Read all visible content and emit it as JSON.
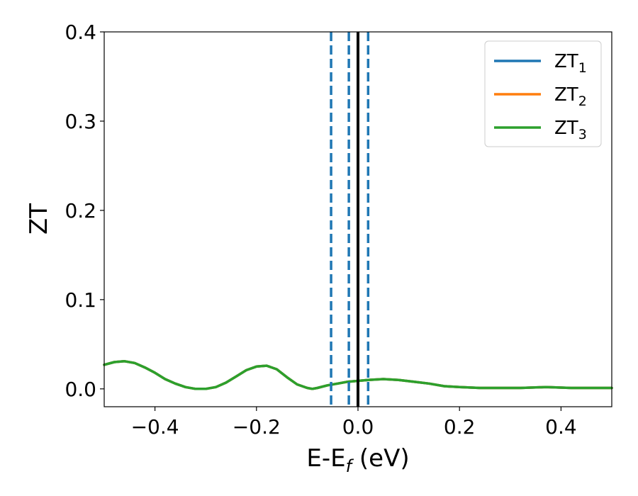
{
  "chart_data": {
    "type": "line",
    "title": "",
    "xlabel_main": "E-E",
    "xlabel_sub": "f",
    "xlabel_unit": " (eV)",
    "ylabel": "ZT",
    "xlim": [
      -0.5,
      0.5
    ],
    "ylim": [
      -0.02,
      0.4
    ],
    "xticks": [
      -0.4,
      -0.2,
      0.0,
      0.2,
      0.4
    ],
    "xtick_labels": [
      "−0.4",
      "−0.2",
      "0.0",
      "0.2",
      "0.4"
    ],
    "yticks": [
      0.0,
      0.1,
      0.2,
      0.3,
      0.4
    ],
    "ytick_labels": [
      "0.0",
      "0.1",
      "0.2",
      "0.3",
      "0.4"
    ],
    "grid": false,
    "legend_position": "top-right",
    "series": [
      {
        "name_main": "ZT",
        "name_sub": "1",
        "color": "#1f77b4",
        "x": [
          -0.5,
          -0.48,
          -0.46,
          -0.44,
          -0.42,
          -0.4,
          -0.38,
          -0.36,
          -0.34,
          -0.32,
          -0.3,
          -0.28,
          -0.26,
          -0.24,
          -0.22,
          -0.2,
          -0.18,
          -0.16,
          -0.14,
          -0.12,
          -0.1,
          -0.09,
          -0.08,
          -0.06,
          -0.04,
          -0.02,
          0.0,
          0.02,
          0.05,
          0.08,
          0.11,
          0.14,
          0.17,
          0.2,
          0.24,
          0.28,
          0.32,
          0.37,
          0.42,
          0.46,
          0.5
        ],
        "y": [
          0.027,
          0.03,
          0.031,
          0.029,
          0.024,
          0.018,
          0.011,
          0.006,
          0.002,
          0.0,
          0.0,
          0.002,
          0.007,
          0.014,
          0.021,
          0.025,
          0.026,
          0.022,
          0.013,
          0.005,
          0.001,
          0.0,
          0.001,
          0.004,
          0.006,
          0.008,
          0.009,
          0.01,
          0.011,
          0.01,
          0.008,
          0.006,
          0.003,
          0.002,
          0.001,
          0.001,
          0.001,
          0.002,
          0.001,
          0.001,
          0.001
        ]
      },
      {
        "name_main": "ZT",
        "name_sub": "2",
        "color": "#ff7f0e",
        "x": [
          -0.5,
          -0.48,
          -0.46,
          -0.44,
          -0.42,
          -0.4,
          -0.38,
          -0.36,
          -0.34,
          -0.32,
          -0.3,
          -0.28,
          -0.26,
          -0.24,
          -0.22,
          -0.2,
          -0.18,
          -0.16,
          -0.14,
          -0.12,
          -0.1,
          -0.09,
          -0.08,
          -0.06,
          -0.04,
          -0.02,
          0.0,
          0.02,
          0.05,
          0.08,
          0.11,
          0.14,
          0.17,
          0.2,
          0.24,
          0.28,
          0.32,
          0.37,
          0.42,
          0.46,
          0.5
        ],
        "y": [
          0.027,
          0.03,
          0.031,
          0.029,
          0.024,
          0.018,
          0.011,
          0.006,
          0.002,
          0.0,
          0.0,
          0.002,
          0.007,
          0.014,
          0.021,
          0.025,
          0.026,
          0.022,
          0.013,
          0.005,
          0.001,
          0.0,
          0.001,
          0.004,
          0.006,
          0.008,
          0.009,
          0.01,
          0.011,
          0.01,
          0.008,
          0.006,
          0.003,
          0.002,
          0.001,
          0.001,
          0.001,
          0.002,
          0.001,
          0.001,
          0.001
        ]
      },
      {
        "name_main": "ZT",
        "name_sub": "3",
        "color": "#2ca02c",
        "x": [
          -0.5,
          -0.48,
          -0.46,
          -0.44,
          -0.42,
          -0.4,
          -0.38,
          -0.36,
          -0.34,
          -0.32,
          -0.3,
          -0.28,
          -0.26,
          -0.24,
          -0.22,
          -0.2,
          -0.18,
          -0.16,
          -0.14,
          -0.12,
          -0.1,
          -0.09,
          -0.08,
          -0.06,
          -0.04,
          -0.02,
          0.0,
          0.02,
          0.05,
          0.08,
          0.11,
          0.14,
          0.17,
          0.2,
          0.24,
          0.28,
          0.32,
          0.37,
          0.42,
          0.46,
          0.5
        ],
        "y": [
          0.027,
          0.03,
          0.031,
          0.029,
          0.024,
          0.018,
          0.011,
          0.006,
          0.002,
          0.0,
          0.0,
          0.002,
          0.007,
          0.014,
          0.021,
          0.025,
          0.026,
          0.022,
          0.013,
          0.005,
          0.001,
          0.0,
          0.001,
          0.004,
          0.006,
          0.008,
          0.009,
          0.01,
          0.011,
          0.01,
          0.008,
          0.006,
          0.003,
          0.002,
          0.001,
          0.001,
          0.001,
          0.002,
          0.001,
          0.001,
          0.001
        ]
      }
    ],
    "vlines": [
      {
        "x": -0.053,
        "style": "dashed",
        "color": "#1f77b4"
      },
      {
        "x": -0.018,
        "style": "dashed",
        "color": "#1f77b4"
      },
      {
        "x": 0.0,
        "style": "solid",
        "color": "#000000"
      },
      {
        "x": 0.02,
        "style": "dashed",
        "color": "#1f77b4"
      }
    ]
  }
}
